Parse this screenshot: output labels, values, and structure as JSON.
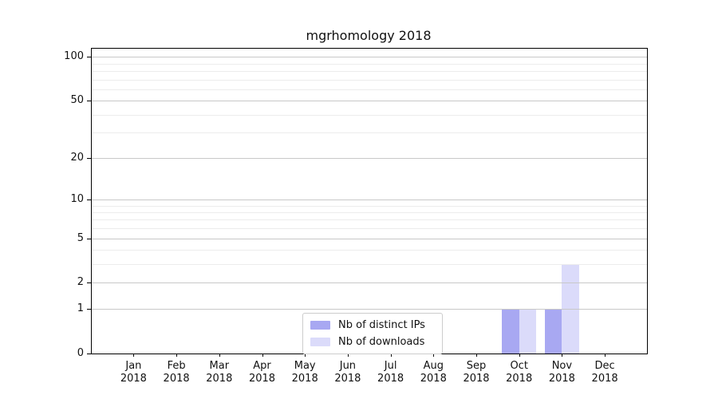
{
  "chart_data": {
    "type": "bar",
    "title": "mgrhomology 2018",
    "categories": [
      "Jan 2018",
      "Feb 2018",
      "Mar 2018",
      "Apr 2018",
      "May 2018",
      "Jun 2018",
      "Jul 2018",
      "Aug 2018",
      "Sep 2018",
      "Oct 2018",
      "Nov 2018",
      "Dec 2018"
    ],
    "series": [
      {
        "name": "Nb of distinct IPs",
        "color": "#a8a8f2",
        "values": [
          0,
          0,
          0,
          0,
          0,
          0,
          0,
          0,
          0,
          1,
          1,
          0
        ]
      },
      {
        "name": "Nb of downloads",
        "color": "#dbdbfa",
        "values": [
          0,
          0,
          0,
          0,
          0,
          0,
          0,
          0,
          0,
          1,
          3,
          0
        ]
      }
    ],
    "yscale": "log1p",
    "ylim": [
      0,
      113
    ],
    "y_ticks": [
      0,
      1,
      2,
      5,
      10,
      20,
      50,
      100
    ],
    "y_minor_gridlines": [
      3,
      4,
      6,
      7,
      8,
      9,
      30,
      40,
      60,
      70,
      80,
      90
    ],
    "grid": true,
    "legend_position": "lower center",
    "colors": {
      "major_grid": "#c8c8c8",
      "minor_grid": "#ececec",
      "axis": "#000000",
      "background": "#ffffff"
    }
  }
}
